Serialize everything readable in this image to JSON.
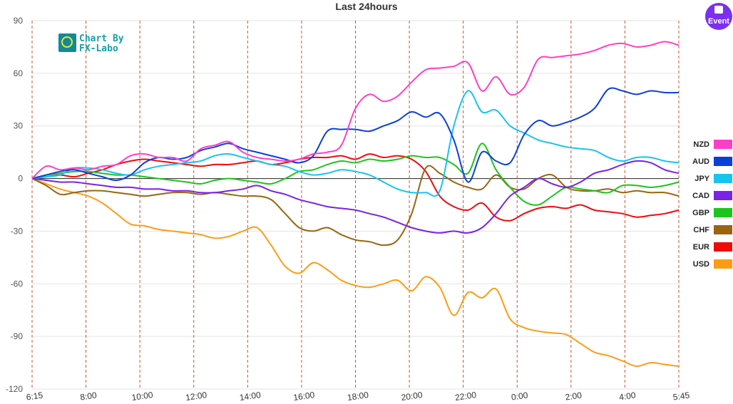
{
  "logo": {
    "line1": "Chart By",
    "line2": "FX-Labo"
  },
  "event_button": {
    "label": "Event",
    "color": "#7b2ff0"
  },
  "chart_data": {
    "type": "line",
    "title": "Last 24hours",
    "xlabel": "",
    "ylabel": "",
    "ylim": [
      -120,
      90
    ],
    "yticks": [
      90,
      60,
      30,
      0,
      -30,
      -60,
      -90,
      -120
    ],
    "grid": true,
    "legend_position": "right",
    "x_labels": [
      "6:15",
      "8:00",
      "10:00",
      "12:00",
      "14:00",
      "16:00",
      "18:00",
      "20:00",
      "22:00",
      "0:00",
      "2:00",
      "4:00",
      "5:45"
    ],
    "x": [
      0,
      1,
      2,
      3,
      4,
      5,
      6,
      7,
      8,
      9,
      10,
      11,
      12,
      13,
      14,
      15,
      16,
      17,
      18,
      19,
      20,
      21,
      22,
      23,
      24,
      25,
      26,
      27,
      28,
      29,
      30,
      31,
      32,
      33,
      34,
      35,
      36,
      37,
      38,
      39,
      40,
      41,
      42,
      43,
      44,
      45,
      46
    ],
    "series": [
      {
        "name": "NZD",
        "color": "#ff3ec8",
        "values": [
          0,
          7,
          5,
          6,
          5,
          7,
          8,
          13,
          14,
          12,
          12,
          10,
          17,
          19,
          21,
          15,
          12,
          11,
          10,
          11,
          14,
          15,
          19,
          40,
          48,
          44,
          47,
          55,
          62,
          63,
          64,
          66,
          50,
          58,
          48,
          52,
          68,
          69,
          70,
          71,
          73,
          76,
          77,
          75,
          76,
          78,
          76
        ]
      },
      {
        "name": "AUD",
        "color": "#0a3fdc",
        "values": [
          0,
          2,
          4,
          5,
          3,
          1,
          -1,
          2,
          9,
          12,
          11,
          12,
          16,
          18,
          20,
          17,
          15,
          13,
          11,
          9,
          13,
          27,
          28,
          28,
          27,
          30,
          33,
          38,
          35,
          37,
          22,
          -2,
          15,
          10,
          9,
          25,
          33,
          30,
          32,
          35,
          40,
          51,
          50,
          48,
          50,
          49,
          49
        ]
      },
      {
        "name": "JPY",
        "color": "#16c4f0",
        "values": [
          0,
          1,
          2,
          6,
          6,
          5,
          3,
          2,
          5,
          7,
          8,
          9,
          10,
          13,
          14,
          12,
          10,
          8,
          7,
          4,
          2,
          3,
          5,
          4,
          2,
          -2,
          -6,
          -8,
          -8,
          -7,
          30,
          50,
          38,
          39,
          30,
          26,
          22,
          20,
          18,
          17,
          16,
          12,
          10,
          12,
          12,
          10,
          9
        ]
      },
      {
        "name": "CAD",
        "color": "#7a22e6",
        "values": [
          0,
          -1,
          -2,
          -2,
          -3,
          -4,
          -5,
          -5,
          -6,
          -6,
          -7,
          -7,
          -8,
          -8,
          -7,
          -6,
          -4,
          -7,
          -9,
          -12,
          -14,
          -16,
          -17,
          -18,
          -20,
          -22,
          -25,
          -28,
          -30,
          -31,
          -30,
          -31,
          -28,
          -20,
          -10,
          -5,
          0,
          -3,
          -5,
          -2,
          3,
          5,
          8,
          10,
          9,
          5,
          3
        ]
      },
      {
        "name": "GBP",
        "color": "#1ec41e",
        "values": [
          0,
          2,
          3,
          4,
          4,
          3,
          2,
          2,
          1,
          0,
          -1,
          -2,
          -3,
          -1,
          0,
          -1,
          -2,
          -3,
          0,
          4,
          5,
          8,
          10,
          9,
          11,
          10,
          11,
          13,
          12,
          12,
          8,
          3,
          20,
          5,
          -5,
          -13,
          -15,
          -10,
          -5,
          -6,
          -7,
          -8,
          -4,
          -4,
          -5,
          -4,
          -2
        ]
      },
      {
        "name": "CHF",
        "color": "#9b6410",
        "values": [
          0,
          -4,
          -9,
          -8,
          -7,
          -7,
          -8,
          -9,
          -10,
          -9,
          -8,
          -8,
          -9,
          -8,
          -9,
          -10,
          -10,
          -12,
          -20,
          -28,
          -30,
          -28,
          -32,
          -35,
          -36,
          -38,
          -35,
          -20,
          6,
          3,
          -2,
          -5,
          -6,
          2,
          -5,
          -6,
          0,
          2,
          -5,
          -7,
          -7,
          -6,
          -8,
          -7,
          -8,
          -8,
          -10
        ]
      },
      {
        "name": "EUR",
        "color": "#f00a0a",
        "values": [
          0,
          1,
          2,
          1,
          3,
          5,
          8,
          10,
          11,
          10,
          9,
          8,
          7,
          8,
          8,
          9,
          10,
          8,
          9,
          11,
          12,
          12,
          13,
          11,
          14,
          12,
          13,
          11,
          4,
          -10,
          -16,
          -18,
          -14,
          -22,
          -24,
          -20,
          -17,
          -16,
          -17,
          -15,
          -18,
          -19,
          -20,
          -22,
          -21,
          -20,
          -18
        ]
      },
      {
        "name": "USD",
        "color": "#ff9c14",
        "values": [
          0,
          -3,
          -6,
          -8,
          -10,
          -14,
          -20,
          -26,
          -27,
          -29,
          -30,
          -31,
          -32,
          -34,
          -33,
          -30,
          -28,
          -38,
          -50,
          -54,
          -48,
          -52,
          -58,
          -61,
          -62,
          -60,
          -58,
          -64,
          -56,
          -62,
          -78,
          -65,
          -68,
          -63,
          -80,
          -85,
          -87,
          -88,
          -89,
          -94,
          -99,
          -101,
          -104,
          -107,
          -105,
          -106,
          -107
        ]
      }
    ]
  }
}
